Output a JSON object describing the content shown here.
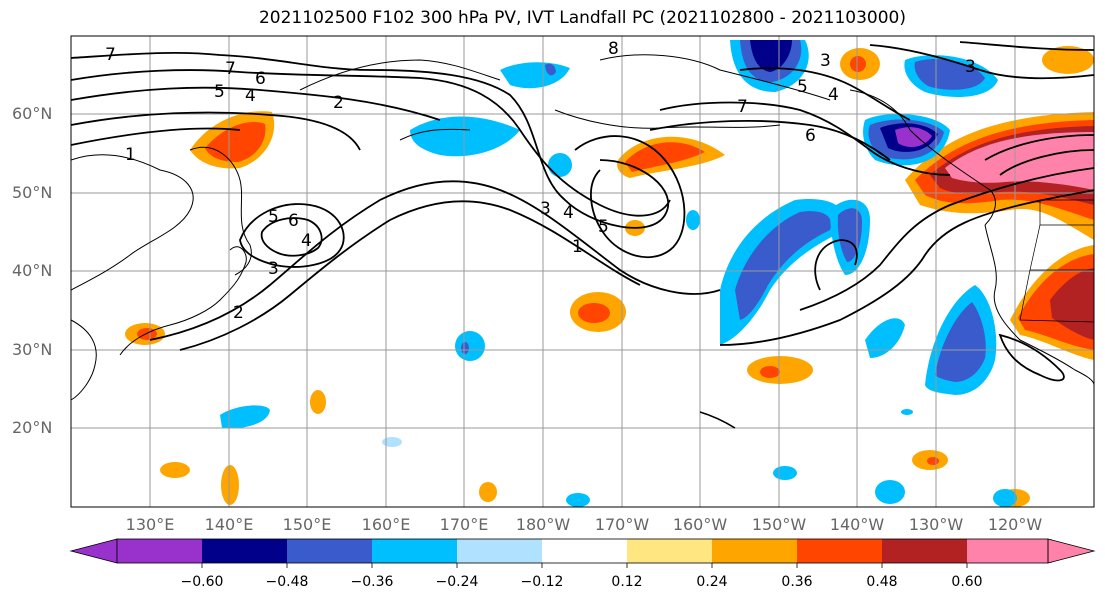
{
  "title": "2021102500 F102 300 hPa PV, IVT Landfall PC (2021102800 - 2021103000)",
  "lat_labels": [
    "60°N",
    "50°N",
    "40°N",
    "30°N",
    "20°N"
  ],
  "lon_labels": [
    "130°E",
    "140°E",
    "150°E",
    "160°E",
    "170°E",
    "180°W",
    "170°W",
    "160°W",
    "150°W",
    "140°W",
    "130°W",
    "120°W"
  ],
  "colorbar": {
    "ticks": [
      "−0.60",
      "−0.48",
      "−0.36",
      "−0.24",
      "−0.12",
      "0.12",
      "0.24",
      "0.36",
      "0.48",
      "0.60"
    ],
    "colors": [
      "#9932CC",
      "#00008B",
      "#3A5BCC",
      "#00BFFF",
      "#B0E2FF",
      "#FFFFFF",
      "#FFE680",
      "#FFA500",
      "#FF4500",
      "#B22222",
      "#FF82AB"
    ]
  },
  "contour_labels": [
    "7",
    "7",
    "6",
    "5",
    "4",
    "2",
    "1",
    "8",
    "3",
    "3",
    "5",
    "4",
    "7",
    "6",
    "3",
    "4",
    "5",
    "1",
    "5",
    "6",
    "4",
    "3",
    "2"
  ]
}
